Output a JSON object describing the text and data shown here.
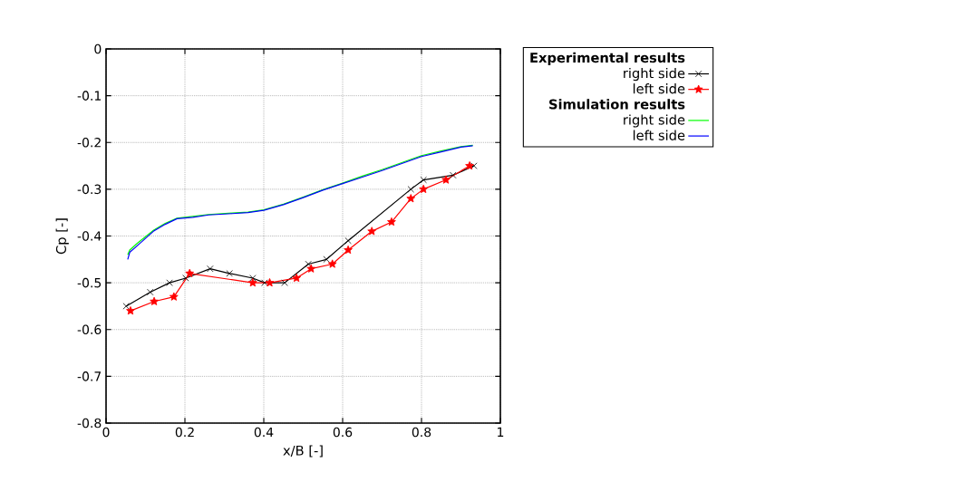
{
  "chart_data": {
    "type": "line",
    "xlabel": "x/B [-]",
    "ylabel": "Cp [-]",
    "annotations": [
      "Experimental results",
      "Simulation results"
    ],
    "xlim": [
      0,
      1
    ],
    "ylim": [
      -0.8,
      0
    ],
    "xticks": [
      0,
      0.2,
      0.4,
      0.6,
      0.8,
      1
    ],
    "yticks": [
      -0.8,
      -0.7,
      -0.6,
      -0.5,
      -0.4,
      -0.3,
      -0.2,
      -0.1,
      0
    ],
    "grid": true,
    "legend": "top right",
    "line_style": "solid",
    "series": [
      {
        "name": "right side",
        "color": "#000000",
        "marker": "cross",
        "x": [
          0.051,
          0.112,
          0.161,
          0.202,
          0.264,
          0.313,
          0.372,
          0.402,
          0.453,
          0.513,
          0.559,
          0.614,
          0.773,
          0.805,
          0.88,
          0.933
        ],
        "values": [
          -0.55,
          -0.52,
          -0.5,
          -0.49,
          -0.47,
          -0.48,
          -0.49,
          -0.5,
          -0.5,
          -0.46,
          -0.45,
          -0.41,
          -0.3,
          -0.28,
          -0.27,
          -0.25
        ]
      },
      {
        "name": "left side",
        "color": "#ff0000",
        "marker": "star",
        "x": [
          0.062,
          0.122,
          0.172,
          0.212,
          0.372,
          0.415,
          0.483,
          0.52,
          0.574,
          0.614,
          0.674,
          0.724,
          0.773,
          0.805,
          0.862,
          0.922
        ],
        "values": [
          -0.56,
          -0.54,
          -0.53,
          -0.48,
          -0.5,
          -0.5,
          -0.49,
          -0.47,
          -0.46,
          -0.43,
          -0.39,
          -0.37,
          -0.32,
          -0.3,
          -0.28,
          -0.25
        ]
      },
      {
        "name": "right side",
        "color": "#00ff00",
        "marker": "none",
        "x": [
          0.055,
          0.06,
          0.08,
          0.12,
          0.15,
          0.18,
          0.22,
          0.26,
          0.32,
          0.36,
          0.4,
          0.45,
          0.5,
          0.55,
          0.6,
          0.65,
          0.7,
          0.75,
          0.8,
          0.85,
          0.9,
          0.93
        ],
        "values": [
          -0.44,
          -0.43,
          -0.415,
          -0.388,
          -0.373,
          -0.362,
          -0.358,
          -0.354,
          -0.351,
          -0.349,
          -0.344,
          -0.332,
          -0.317,
          -0.301,
          -0.287,
          -0.272,
          -0.258,
          -0.243,
          -0.228,
          -0.218,
          -0.209,
          -0.206
        ]
      },
      {
        "name": "left side",
        "color": "#0000ff",
        "marker": "none",
        "x": [
          0.055,
          0.06,
          0.08,
          0.12,
          0.15,
          0.18,
          0.22,
          0.26,
          0.32,
          0.36,
          0.4,
          0.45,
          0.5,
          0.55,
          0.6,
          0.65,
          0.7,
          0.75,
          0.8,
          0.85,
          0.9,
          0.93
        ],
        "values": [
          -0.45,
          -0.435,
          -0.42,
          -0.39,
          -0.375,
          -0.363,
          -0.36,
          -0.355,
          -0.352,
          -0.35,
          -0.345,
          -0.333,
          -0.318,
          -0.302,
          -0.288,
          -0.274,
          -0.26,
          -0.245,
          -0.23,
          -0.22,
          -0.21,
          -0.207
        ]
      }
    ]
  }
}
